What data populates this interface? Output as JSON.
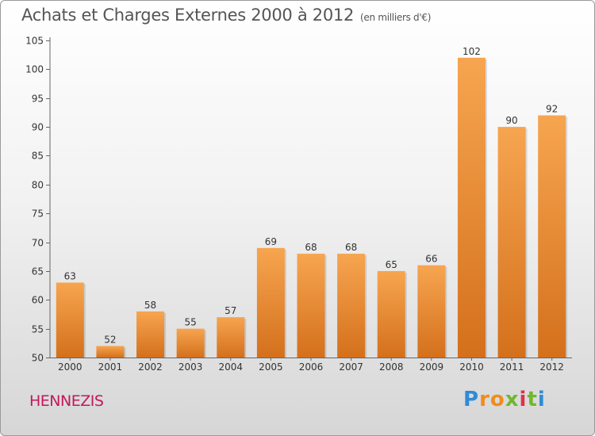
{
  "title": "Achats et Charges Externes 2000 à 2012",
  "unit": "(en milliers d'€)",
  "commune": "HENNEZIS",
  "logo": {
    "letters": [
      "P",
      "r",
      "o",
      "x",
      "i",
      "t",
      "i"
    ],
    "colors": [
      "#2e8bd8",
      "#f08c1e",
      "#f08c1e",
      "#6fb830",
      "#e0304b",
      "#6fb830",
      "#2e8bd8"
    ]
  },
  "chart_data": {
    "type": "bar",
    "categories": [
      "2000",
      "2001",
      "2002",
      "2003",
      "2004",
      "2005",
      "2006",
      "2007",
      "2008",
      "2009",
      "2010",
      "2011",
      "2012"
    ],
    "values": [
      63,
      52,
      58,
      55,
      57,
      69,
      68,
      68,
      65,
      66,
      102,
      90,
      92
    ],
    "ylim": [
      50,
      105
    ],
    "yticks": [
      50,
      55,
      60,
      65,
      70,
      75,
      80,
      85,
      90,
      95,
      100,
      105
    ],
    "grid": false,
    "colors": {
      "bar_top": "#f7a550",
      "bar_bottom": "#d4701c"
    }
  }
}
